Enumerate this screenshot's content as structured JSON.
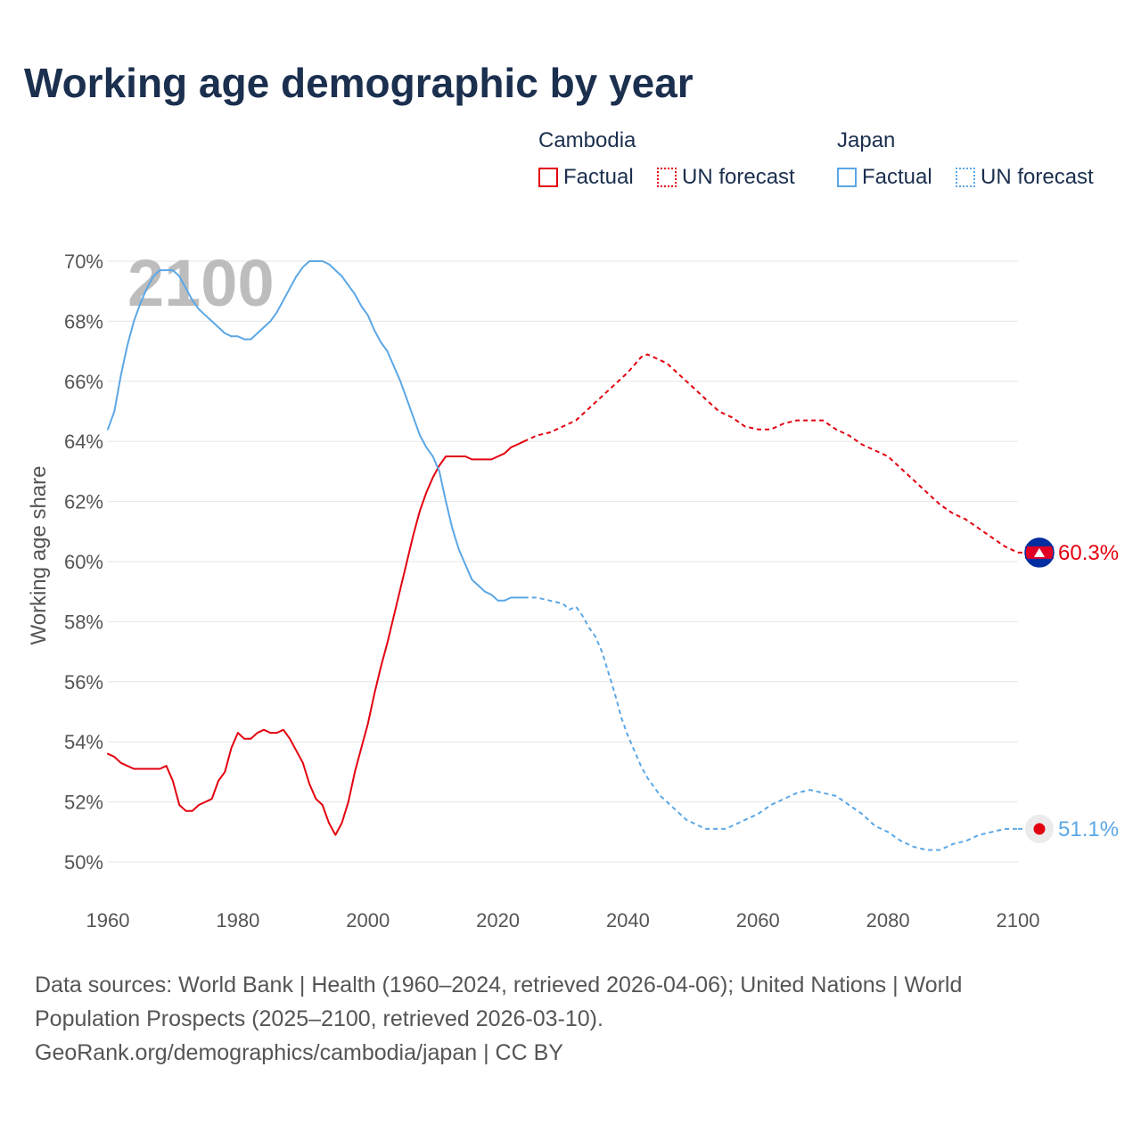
{
  "title": "Working age demographic by year",
  "legend": {
    "groups": [
      {
        "heading": "Cambodia",
        "factual_label": "Factual",
        "forecast_label": "UN forecast",
        "color": "#e3000f"
      },
      {
        "heading": "Japan",
        "factual_label": "Factual",
        "forecast_label": "UN forecast",
        "color": "#5ba7e6"
      }
    ]
  },
  "footer": {
    "line1": "Data sources: World Bank | Health (1960–2024, retrieved 2026-04-06); United Nations | World",
    "line2": "Population Prospects (2025–2100, retrieved 2026-03-10).",
    "line3": "GeoRank.org/demographics/cambodia/japan | CC BY"
  },
  "chart_data": {
    "type": "line",
    "title": "Working age demographic by year",
    "ylabel": "Working age share",
    "xlabel": "",
    "watermark_year": "2100",
    "xlim": [
      1960,
      2100
    ],
    "ylim": [
      50,
      70
    ],
    "x_ticks": [
      1960,
      1980,
      2000,
      2020,
      2040,
      2060,
      2080,
      2100
    ],
    "x_tick_labels": [
      "1960",
      "1980",
      "2000",
      "2020",
      "2040",
      "2060",
      "2080",
      "2100"
    ],
    "y_ticks": [
      50,
      52,
      54,
      56,
      58,
      60,
      62,
      64,
      66,
      68,
      70
    ],
    "y_tick_labels": [
      "50%",
      "52%",
      "54%",
      "56%",
      "58%",
      "60%",
      "62%",
      "64%",
      "66%",
      "68%",
      "70%"
    ],
    "grid": true,
    "series": [
      {
        "name": "Cambodia",
        "kind": "Factual",
        "color": "#e3000f",
        "style": "solid",
        "points": [
          [
            1960,
            53.6
          ],
          [
            1961,
            53.5
          ],
          [
            1962,
            53.3
          ],
          [
            1963,
            53.2
          ],
          [
            1964,
            53.1
          ],
          [
            1965,
            53.1
          ],
          [
            1966,
            53.1
          ],
          [
            1967,
            53.1
          ],
          [
            1968,
            53.1
          ],
          [
            1969,
            53.2
          ],
          [
            1970,
            52.7
          ],
          [
            1971,
            51.9
          ],
          [
            1972,
            51.7
          ],
          [
            1973,
            51.7
          ],
          [
            1974,
            51.9
          ],
          [
            1975,
            52.0
          ],
          [
            1976,
            52.1
          ],
          [
            1977,
            52.7
          ],
          [
            1978,
            53.0
          ],
          [
            1979,
            53.8
          ],
          [
            1980,
            54.3
          ],
          [
            1981,
            54.1
          ],
          [
            1982,
            54.1
          ],
          [
            1983,
            54.3
          ],
          [
            1984,
            54.4
          ],
          [
            1985,
            54.3
          ],
          [
            1986,
            54.3
          ],
          [
            1987,
            54.4
          ],
          [
            1988,
            54.1
          ],
          [
            1989,
            53.7
          ],
          [
            1990,
            53.3
          ],
          [
            1991,
            52.6
          ],
          [
            1992,
            52.1
          ],
          [
            1993,
            51.9
          ],
          [
            1994,
            51.3
          ],
          [
            1995,
            50.9
          ],
          [
            1996,
            51.3
          ],
          [
            1997,
            52.0
          ],
          [
            1998,
            53.0
          ],
          [
            1999,
            53.8
          ],
          [
            2000,
            54.6
          ],
          [
            2001,
            55.6
          ],
          [
            2002,
            56.5
          ],
          [
            2003,
            57.3
          ],
          [
            2004,
            58.2
          ],
          [
            2005,
            59.1
          ],
          [
            2006,
            60.0
          ],
          [
            2007,
            60.9
          ],
          [
            2008,
            61.7
          ],
          [
            2009,
            62.3
          ],
          [
            2010,
            62.8
          ],
          [
            2011,
            63.2
          ],
          [
            2012,
            63.5
          ],
          [
            2013,
            63.5
          ],
          [
            2014,
            63.5
          ],
          [
            2015,
            63.5
          ],
          [
            2016,
            63.4
          ],
          [
            2017,
            63.4
          ],
          [
            2018,
            63.4
          ],
          [
            2019,
            63.4
          ],
          [
            2020,
            63.5
          ],
          [
            2021,
            63.6
          ],
          [
            2022,
            63.8
          ],
          [
            2023,
            63.9
          ],
          [
            2024,
            64.0
          ]
        ]
      },
      {
        "name": "Cambodia",
        "kind": "UN forecast",
        "color": "#e3000f",
        "style": "dashed",
        "points": [
          [
            2024,
            64.0
          ],
          [
            2026,
            64.2
          ],
          [
            2028,
            64.3
          ],
          [
            2030,
            64.5
          ],
          [
            2032,
            64.7
          ],
          [
            2034,
            65.1
          ],
          [
            2036,
            65.5
          ],
          [
            2038,
            65.9
          ],
          [
            2040,
            66.3
          ],
          [
            2042,
            66.8
          ],
          [
            2043,
            66.9
          ],
          [
            2044,
            66.8
          ],
          [
            2046,
            66.6
          ],
          [
            2048,
            66.2
          ],
          [
            2050,
            65.8
          ],
          [
            2052,
            65.4
          ],
          [
            2054,
            65.0
          ],
          [
            2056,
            64.8
          ],
          [
            2058,
            64.5
          ],
          [
            2060,
            64.4
          ],
          [
            2062,
            64.4
          ],
          [
            2064,
            64.6
          ],
          [
            2066,
            64.7
          ],
          [
            2068,
            64.7
          ],
          [
            2070,
            64.7
          ],
          [
            2072,
            64.4
          ],
          [
            2074,
            64.2
          ],
          [
            2076,
            63.9
          ],
          [
            2078,
            63.7
          ],
          [
            2080,
            63.5
          ],
          [
            2082,
            63.1
          ],
          [
            2084,
            62.7
          ],
          [
            2086,
            62.3
          ],
          [
            2088,
            61.9
          ],
          [
            2090,
            61.6
          ],
          [
            2092,
            61.4
          ],
          [
            2094,
            61.1
          ],
          [
            2096,
            60.8
          ],
          [
            2098,
            60.5
          ],
          [
            2100,
            60.3
          ]
        ]
      },
      {
        "name": "Japan",
        "kind": "Factual",
        "color": "#5ba7e6",
        "style": "solid",
        "points": [
          [
            1960,
            64.4
          ],
          [
            1961,
            65.0
          ],
          [
            1962,
            66.2
          ],
          [
            1963,
            67.2
          ],
          [
            1964,
            68.0
          ],
          [
            1965,
            68.6
          ],
          [
            1966,
            69.1
          ],
          [
            1967,
            69.5
          ],
          [
            1968,
            69.7
          ],
          [
            1969,
            69.7
          ],
          [
            1970,
            69.7
          ],
          [
            1971,
            69.5
          ],
          [
            1972,
            69.1
          ],
          [
            1973,
            68.7
          ],
          [
            1974,
            68.4
          ],
          [
            1975,
            68.2
          ],
          [
            1976,
            68.0
          ],
          [
            1977,
            67.8
          ],
          [
            1978,
            67.6
          ],
          [
            1979,
            67.5
          ],
          [
            1980,
            67.5
          ],
          [
            1981,
            67.4
          ],
          [
            1982,
            67.4
          ],
          [
            1983,
            67.6
          ],
          [
            1984,
            67.8
          ],
          [
            1985,
            68.0
          ],
          [
            1986,
            68.3
          ],
          [
            1987,
            68.7
          ],
          [
            1988,
            69.1
          ],
          [
            1989,
            69.5
          ],
          [
            1990,
            69.8
          ],
          [
            1991,
            70.0
          ],
          [
            1992,
            70.0
          ],
          [
            1993,
            70.0
          ],
          [
            1994,
            69.9
          ],
          [
            1995,
            69.7
          ],
          [
            1996,
            69.5
          ],
          [
            1997,
            69.2
          ],
          [
            1998,
            68.9
          ],
          [
            1999,
            68.5
          ],
          [
            2000,
            68.2
          ],
          [
            2001,
            67.7
          ],
          [
            2002,
            67.3
          ],
          [
            2003,
            67.0
          ],
          [
            2004,
            66.5
          ],
          [
            2005,
            66.0
          ],
          [
            2006,
            65.4
          ],
          [
            2007,
            64.8
          ],
          [
            2008,
            64.2
          ],
          [
            2009,
            63.8
          ],
          [
            2010,
            63.5
          ],
          [
            2011,
            63.0
          ],
          [
            2012,
            62.0
          ],
          [
            2013,
            61.1
          ],
          [
            2014,
            60.4
          ],
          [
            2015,
            59.9
          ],
          [
            2016,
            59.4
          ],
          [
            2017,
            59.2
          ],
          [
            2018,
            59.0
          ],
          [
            2019,
            58.9
          ],
          [
            2020,
            58.7
          ],
          [
            2021,
            58.7
          ],
          [
            2022,
            58.8
          ],
          [
            2023,
            58.8
          ],
          [
            2024,
            58.8
          ]
        ]
      },
      {
        "name": "Japan",
        "kind": "UN forecast",
        "color": "#5ba7e6",
        "style": "dashed",
        "points": [
          [
            2024,
            58.8
          ],
          [
            2026,
            58.8
          ],
          [
            2028,
            58.7
          ],
          [
            2030,
            58.6
          ],
          [
            2031,
            58.4
          ],
          [
            2032,
            58.5
          ],
          [
            2033,
            58.2
          ],
          [
            2034,
            57.8
          ],
          [
            2035,
            57.5
          ],
          [
            2036,
            57.0
          ],
          [
            2037,
            56.3
          ],
          [
            2038,
            55.6
          ],
          [
            2039,
            54.8
          ],
          [
            2040,
            54.2
          ],
          [
            2041,
            53.7
          ],
          [
            2042,
            53.2
          ],
          [
            2043,
            52.8
          ],
          [
            2044,
            52.5
          ],
          [
            2045,
            52.2
          ],
          [
            2046,
            52.0
          ],
          [
            2047,
            51.8
          ],
          [
            2048,
            51.6
          ],
          [
            2049,
            51.4
          ],
          [
            2050,
            51.3
          ],
          [
            2051,
            51.2
          ],
          [
            2052,
            51.1
          ],
          [
            2054,
            51.1
          ],
          [
            2055,
            51.1
          ],
          [
            2056,
            51.2
          ],
          [
            2058,
            51.4
          ],
          [
            2060,
            51.6
          ],
          [
            2062,
            51.9
          ],
          [
            2064,
            52.1
          ],
          [
            2066,
            52.3
          ],
          [
            2068,
            52.4
          ],
          [
            2070,
            52.3
          ],
          [
            2072,
            52.2
          ],
          [
            2074,
            51.9
          ],
          [
            2076,
            51.6
          ],
          [
            2078,
            51.2
          ],
          [
            2080,
            51.0
          ],
          [
            2082,
            50.7
          ],
          [
            2084,
            50.5
          ],
          [
            2086,
            50.4
          ],
          [
            2088,
            50.4
          ],
          [
            2090,
            50.6
          ],
          [
            2092,
            50.7
          ],
          [
            2094,
            50.9
          ],
          [
            2096,
            51.0
          ],
          [
            2098,
            51.1
          ],
          [
            2100,
            51.1
          ]
        ]
      }
    ],
    "end_labels": [
      {
        "country": "Cambodia",
        "value": 60.3,
        "text": "60.3%",
        "color": "#e3000f",
        "flag": "cambodia-flag-icon"
      },
      {
        "country": "Japan",
        "value": 51.1,
        "text": "51.1%",
        "color": "#5ba7e6",
        "flag": "japan-flag-icon"
      }
    ]
  }
}
